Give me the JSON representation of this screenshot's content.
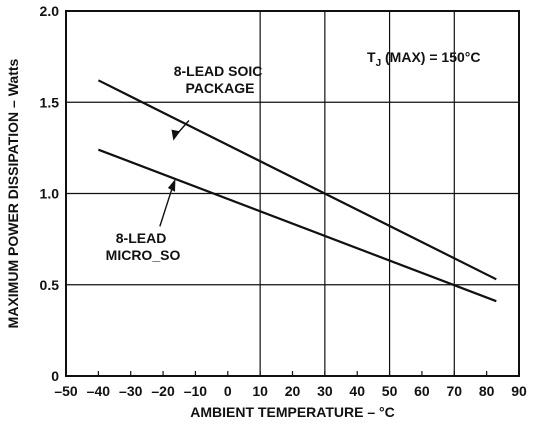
{
  "chart_data": {
    "type": "line",
    "title": "",
    "xlabel": "AMBIENT TEMPERATURE – °C",
    "ylabel": "MAXIMUM POWER DISSIPATION – Watts",
    "xlim": [
      -50,
      90
    ],
    "ylim": [
      0,
      2.0
    ],
    "xticks": [
      -50,
      -40,
      -30,
      -20,
      -10,
      0,
      10,
      20,
      30,
      40,
      50,
      60,
      70,
      80,
      90
    ],
    "xtick_labels": [
      "–50",
      "–40",
      "–30",
      "–20",
      "–10",
      "0",
      "10",
      "20",
      "30",
      "40",
      "50",
      "60",
      "70",
      "80",
      "90"
    ],
    "yticks": [
      0,
      0.5,
      1.0,
      1.5,
      2.0
    ],
    "ytick_labels": [
      "0",
      "0.5",
      "1.0",
      "1.5",
      "2.0"
    ],
    "grid": true,
    "series": [
      {
        "name": "8-LEAD SOIC PACKAGE",
        "x": [
          -40,
          83
        ],
        "y": [
          1.62,
          0.53
        ]
      },
      {
        "name": "8-LEAD MICRO_SO",
        "x": [
          -40,
          83
        ],
        "y": [
          1.24,
          0.41
        ]
      }
    ],
    "annotations": {
      "soic": [
        "8-LEAD SOIC",
        "PACKAGE"
      ],
      "micro": [
        "8-LEAD",
        "MICRO_SO"
      ],
      "condition": {
        "t": "T",
        "sub": "J",
        "rest": " (MAX) = 150°C"
      }
    },
    "colors": {
      "line": "#111111",
      "grid": "#111111",
      "background": "#ffffff"
    }
  }
}
